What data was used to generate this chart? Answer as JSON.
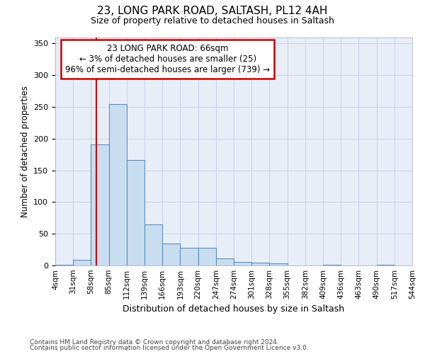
{
  "title": "23, LONG PARK ROAD, SALTASH, PL12 4AH",
  "subtitle": "Size of property relative to detached houses in Saltash",
  "xlabel": "Distribution of detached houses by size in Saltash",
  "ylabel": "Number of detached properties",
  "footnote1": "Contains HM Land Registry data © Crown copyright and database right 2024.",
  "footnote2": "Contains public sector information licensed under the Open Government Licence v3.0.",
  "bin_edges": [
    4,
    31,
    58,
    85,
    112,
    139,
    166,
    193,
    220,
    247,
    274,
    301,
    328,
    355,
    382,
    409,
    436,
    463,
    490,
    517,
    544
  ],
  "bar_heights": [
    1,
    9,
    191,
    255,
    166,
    65,
    35,
    28,
    28,
    11,
    6,
    5,
    3,
    0,
    0,
    1,
    0,
    0,
    1,
    0
  ],
  "bar_color": "#c9ddf0",
  "bar_edge_color": "#5a8fc0",
  "grid_color": "#c8d4e8",
  "background_color": "#e8eef8",
  "red_line_x": 66,
  "annotation_line1": "23 LONG PARK ROAD: 66sqm",
  "annotation_line2": "← 3% of detached houses are smaller (25)",
  "annotation_line3": "96% of semi-detached houses are larger (739) →",
  "annotation_box_facecolor": "#ffffff",
  "annotation_box_edgecolor": "#cc0000",
  "ylim_max": 360,
  "yticks": [
    0,
    50,
    100,
    150,
    200,
    250,
    300,
    350
  ]
}
